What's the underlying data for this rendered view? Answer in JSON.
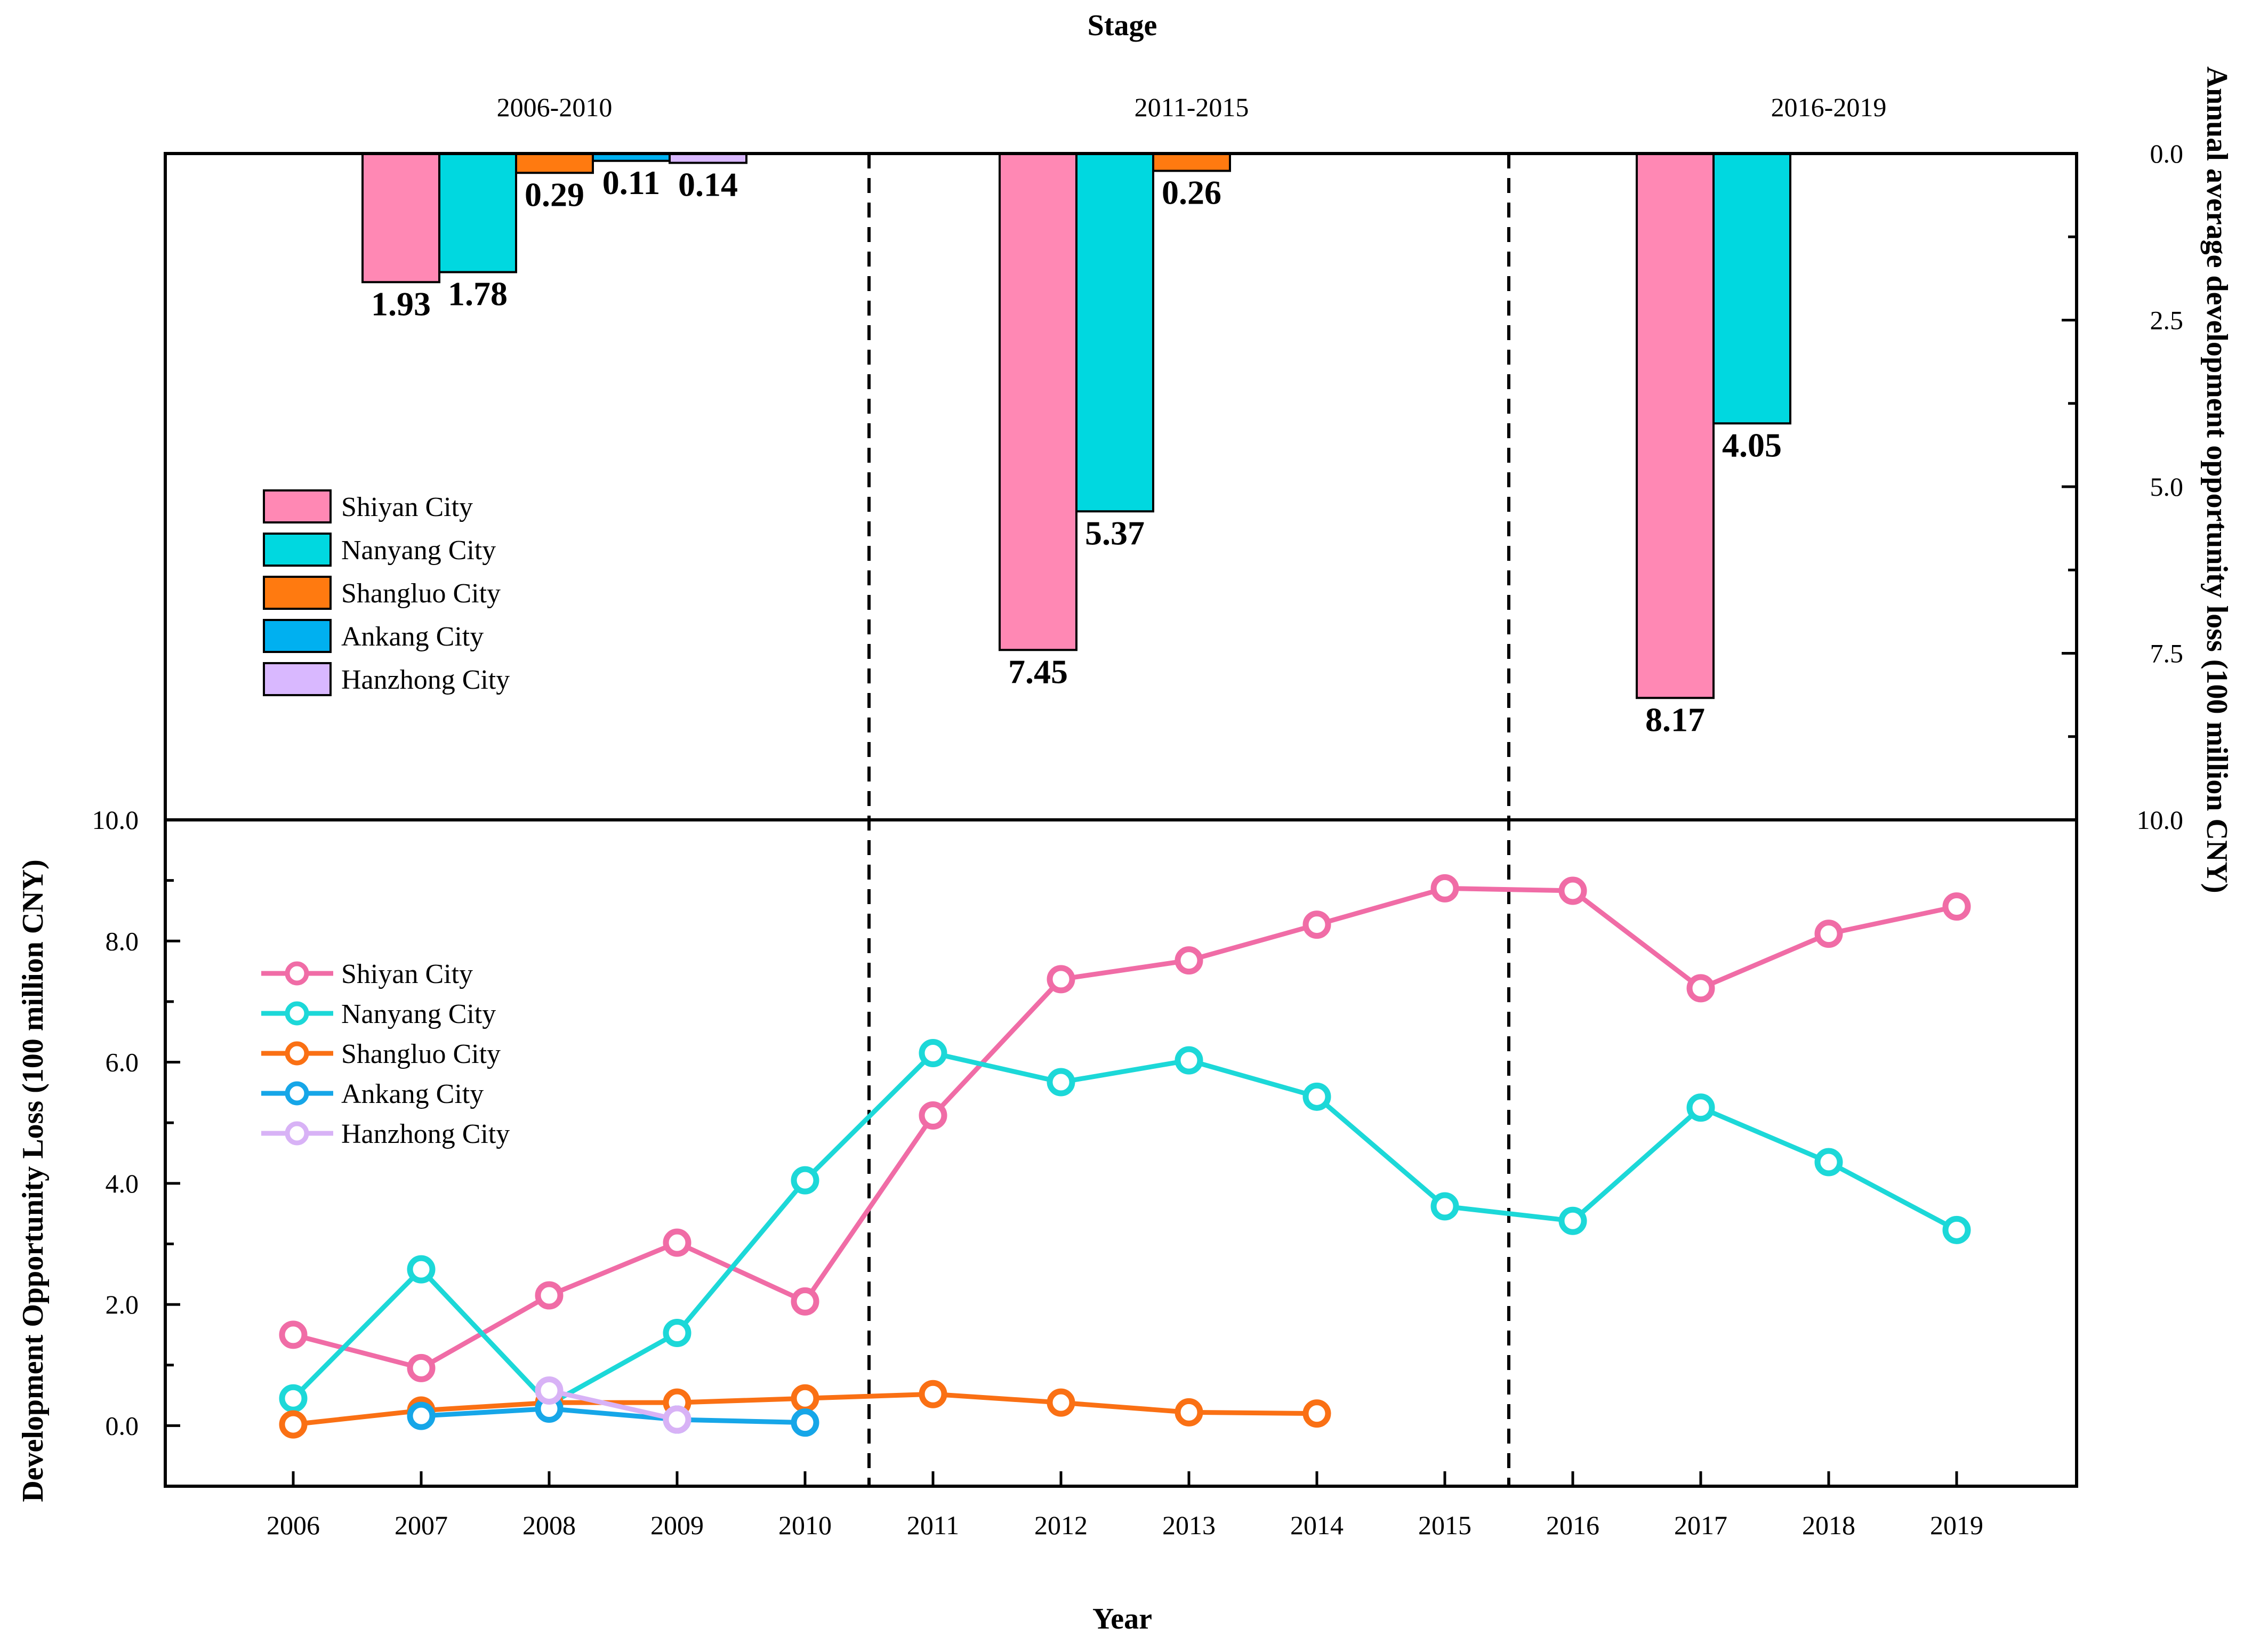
{
  "chart_data": [
    {
      "type": "bar",
      "title": "Stage",
      "ylabel": "Annual average development opportunity loss (100 million CNY)",
      "ylim": [
        0,
        10
      ],
      "y_inverted": true,
      "y_ticks": [
        "0.0",
        "2.5",
        "5.0",
        "7.5",
        "10.0"
      ],
      "categories": [
        "2006-2010",
        "2011-2015",
        "2016-2019"
      ],
      "legend_position": "center-left",
      "series": [
        {
          "name": "Shiyan City",
          "color": "#FF88B4",
          "values": [
            1.93,
            7.45,
            8.17
          ],
          "labels": [
            "1.93",
            "7.45",
            "8.17"
          ]
        },
        {
          "name": "Nanyang City",
          "color": "#00D8E0",
          "values": [
            1.78,
            5.37,
            4.05
          ],
          "labels": [
            "1.78",
            "5.37",
            "4.05"
          ]
        },
        {
          "name": "Shangluo City",
          "color": "#FF7A10",
          "values": [
            0.29,
            0.26,
            null
          ],
          "labels": [
            "0.29",
            "0.26",
            ""
          ]
        },
        {
          "name": "Ankang City",
          "color": "#00B0F0",
          "values": [
            0.11,
            null,
            null
          ],
          "labels": [
            "0.11",
            "",
            ""
          ]
        },
        {
          "name": "Hanzhong City",
          "color": "#D9B8FF",
          "values": [
            0.14,
            null,
            null
          ],
          "labels": [
            "0.14",
            "",
            ""
          ]
        }
      ]
    },
    {
      "type": "line",
      "xlabel": "Year",
      "ylabel": "Development Opportunity Loss (100 million CNY)",
      "ylim": [
        -1,
        10
      ],
      "y_ticks": [
        "0.0",
        "2.0",
        "4.0",
        "6.0",
        "8.0",
        "10.0"
      ],
      "x": [
        "2006",
        "2007",
        "2008",
        "2009",
        "2010",
        "2011",
        "2012",
        "2013",
        "2014",
        "2015",
        "2016",
        "2017",
        "2018",
        "2019"
      ],
      "stage_dividers": [
        2010.5,
        2015.5
      ],
      "legend_position": "center-left",
      "series": [
        {
          "name": "Shiyan City",
          "color": "#F06CA6",
          "values": [
            1.5,
            0.95,
            2.15,
            3.02,
            2.05,
            5.12,
            7.37,
            7.68,
            8.27,
            8.87,
            8.83,
            7.22,
            8.12,
            8.57
          ]
        },
        {
          "name": "Nanyang City",
          "color": "#1CD8D8",
          "values": [
            0.45,
            2.58,
            0.35,
            1.53,
            4.05,
            6.15,
            5.67,
            6.03,
            5.43,
            3.62,
            3.38,
            5.25,
            4.35,
            3.23
          ]
        },
        {
          "name": "Shangluo City",
          "color": "#FA7014",
          "values": [
            0.02,
            0.25,
            0.38,
            0.38,
            0.45,
            0.52,
            0.38,
            0.22,
            0.2,
            null,
            null,
            null,
            null,
            null
          ]
        },
        {
          "name": "Ankang City",
          "color": "#16A6E8",
          "values": [
            null,
            0.16,
            0.28,
            0.1,
            0.05,
            null,
            null,
            null,
            null,
            null,
            null,
            null,
            null,
            null
          ]
        },
        {
          "name": "Hanzhong City",
          "color": "#D8B2F6",
          "values": [
            null,
            null,
            0.58,
            0.1,
            null,
            null,
            null,
            null,
            null,
            null,
            null,
            null,
            null,
            null
          ]
        }
      ]
    }
  ]
}
